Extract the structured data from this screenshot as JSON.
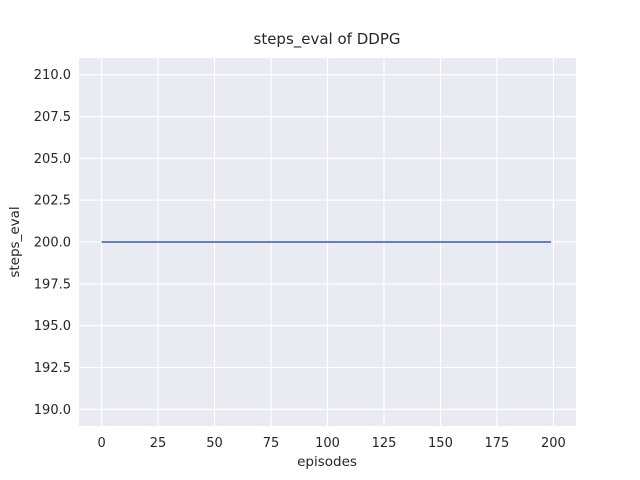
{
  "figure": {
    "background_color": "#ffffff"
  },
  "chart_data": {
    "type": "line",
    "title": "steps_eval of DDPG",
    "xlabel": "episodes",
    "ylabel": "steps_eval",
    "xlim": [
      -10,
      210
    ],
    "ylim": [
      189,
      211
    ],
    "x_ticks": [
      0,
      25,
      50,
      75,
      100,
      125,
      150,
      175,
      200
    ],
    "x_tick_labels": [
      "0",
      "25",
      "50",
      "75",
      "100",
      "125",
      "150",
      "175",
      "200"
    ],
    "y_ticks": [
      190,
      192.5,
      195,
      197.5,
      200,
      202.5,
      205,
      207.5,
      210
    ],
    "y_tick_labels": [
      "190.0",
      "192.5",
      "195.0",
      "197.5",
      "200.0",
      "202.5",
      "205.0",
      "207.5",
      "210.0"
    ],
    "grid": true,
    "legend": "none",
    "style": {
      "axes_background": "#EAEAF2",
      "grid_color": "#FFFFFF",
      "text_color": "#262626",
      "line_width": 1.8,
      "grid_line_width": 1.2
    },
    "series": [
      {
        "name": "DDPG",
        "color": "#4C72B0",
        "x": [
          0,
          199
        ],
        "y": [
          200,
          200
        ]
      }
    ]
  }
}
